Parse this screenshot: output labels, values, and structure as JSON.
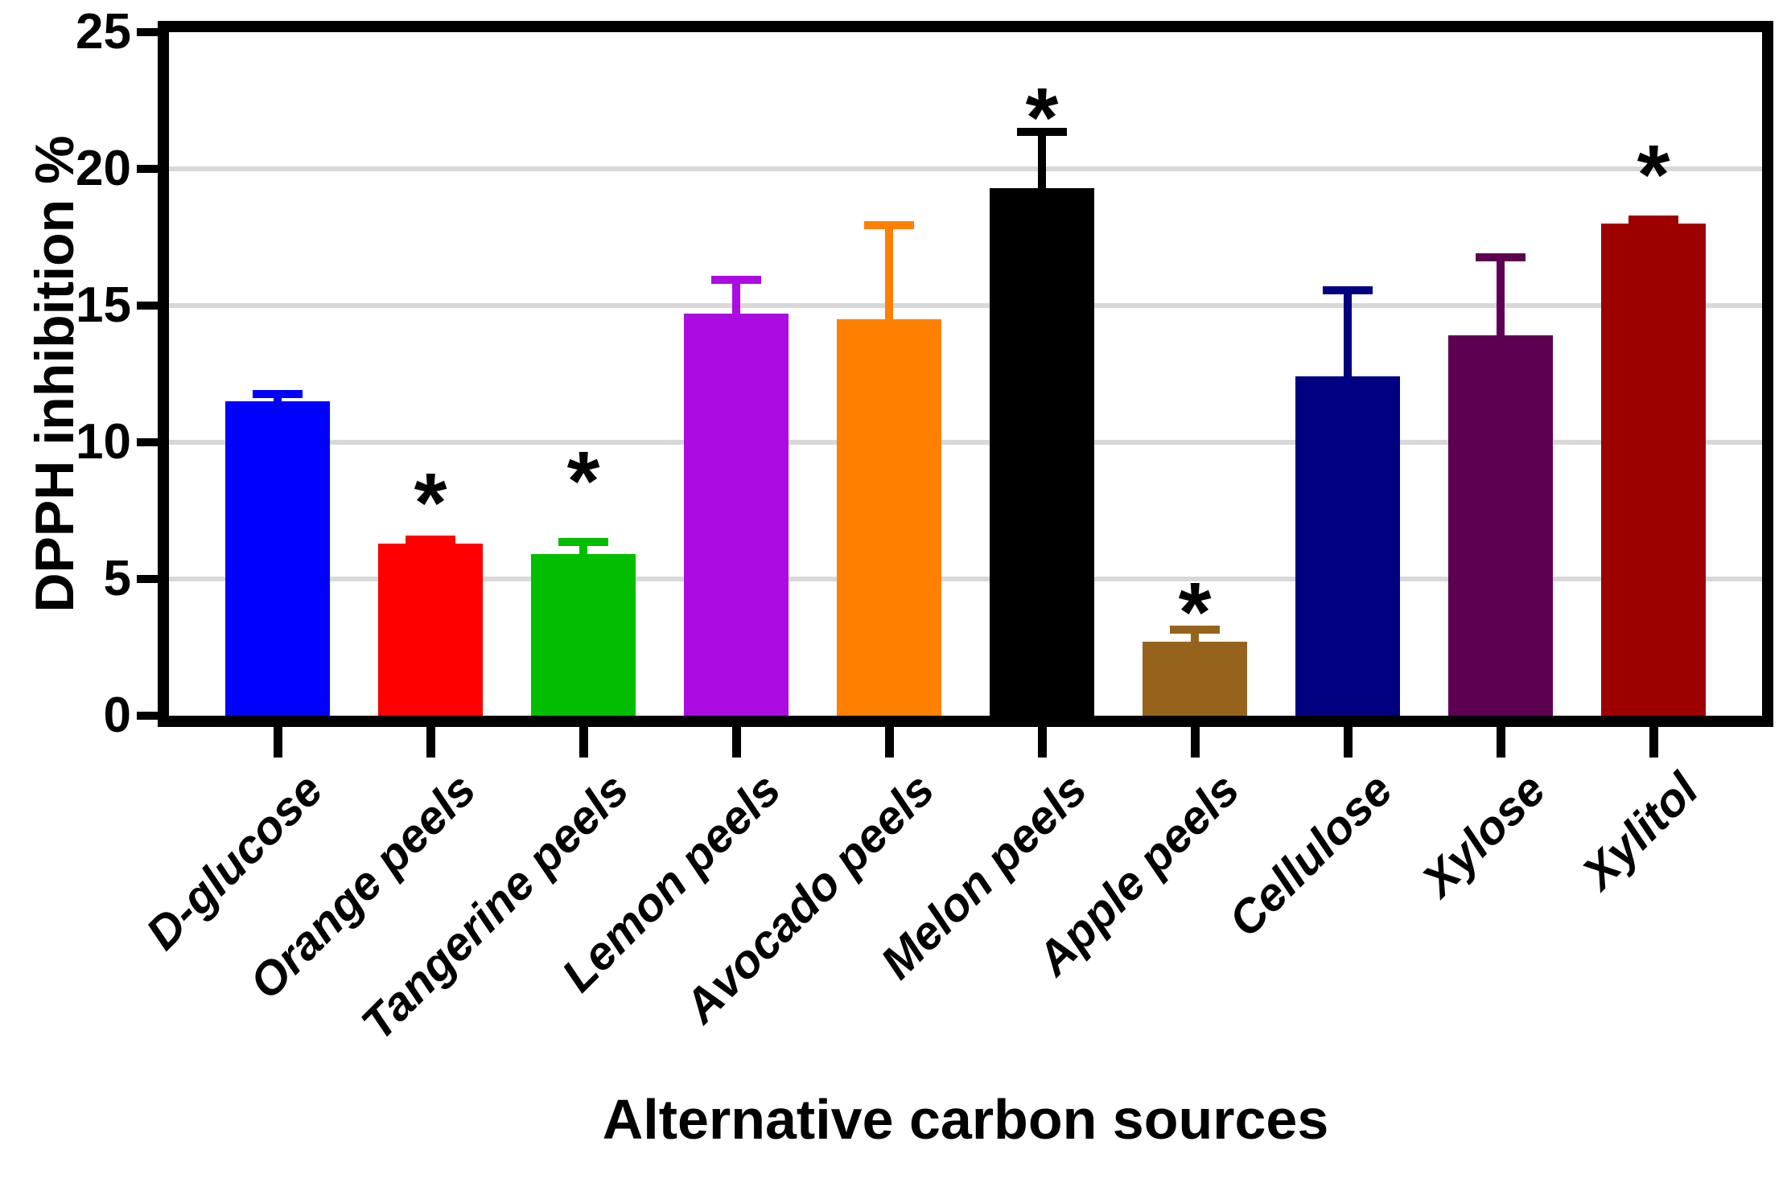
{
  "chart_data": {
    "type": "bar",
    "title": "",
    "xlabel": "Alternative carbon sources",
    "ylabel": "DPPH inhibition %",
    "ylim": [
      0,
      25
    ],
    "yticks": [
      0,
      5,
      10,
      15,
      20,
      25
    ],
    "grid": true,
    "legend": false,
    "significance_marker": "*",
    "categories": [
      "D-glucose",
      "Orange peels",
      "Tangerine peels",
      "Lemon peels",
      "Avocado peels",
      "Melon peels",
      "Apple peels",
      "Cellulose",
      "Xylose",
      "Xylitol"
    ],
    "values": [
      11.5,
      6.3,
      5.9,
      14.7,
      14.5,
      19.3,
      2.7,
      12.4,
      13.9,
      18.0
    ],
    "error_plus": [
      0.4,
      0.3,
      0.6,
      1.4,
      3.6,
      2.2,
      0.6,
      3.3,
      3.0,
      0.3
    ],
    "significant": [
      false,
      true,
      true,
      false,
      false,
      true,
      true,
      false,
      false,
      true
    ],
    "star_y": [
      null,
      8.4,
      9.2,
      null,
      null,
      22.5,
      4.4,
      null,
      null,
      20.4
    ],
    "bar_colors": [
      "#0000FF",
      "#FF0000",
      "#02BE01",
      "#AC0BE1",
      "#FF8000",
      "#000000",
      "#96631D",
      "#000080",
      "#5E0051",
      "#9E0000"
    ]
  },
  "style_colors": {
    "grid": "#D8D8D8",
    "axis": "#000000",
    "background": "#FFFFFF",
    "star": "#000000"
  }
}
